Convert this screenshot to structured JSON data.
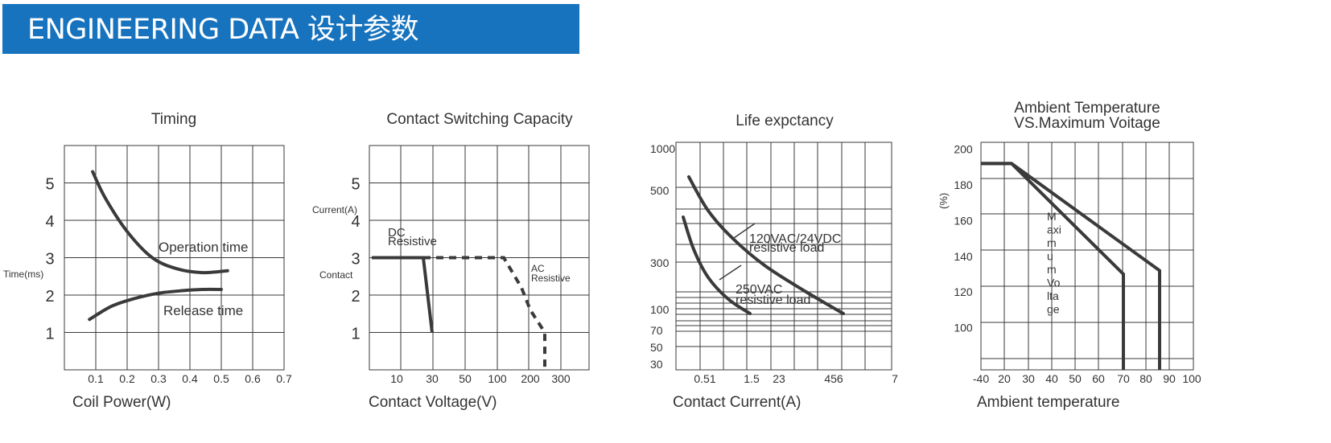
{
  "header": {
    "title": "ENGINEERING DATA 设计参数"
  },
  "accent_color": "#1773be",
  "line_color": "#3a3a3a",
  "chart_data": [
    {
      "id": "timing",
      "type": "line",
      "title": "Timing",
      "xlabel": "Coil Power(W)",
      "ylabel": "Time(ms)",
      "xlim": [
        0,
        0.7
      ],
      "ylim": [
        0,
        6
      ],
      "xticks": [
        "0.1",
        "0.2",
        "0.3",
        "0.4",
        "0.5",
        "0.6",
        "0.7"
      ],
      "yticks": [
        "1",
        "2",
        "3",
        "4",
        "5"
      ],
      "grid": true,
      "series": [
        {
          "name": "Operation time",
          "x": [
            0.09,
            0.13,
            0.2,
            0.28,
            0.36,
            0.44,
            0.52
          ],
          "y": [
            5.3,
            4.6,
            3.7,
            3.0,
            2.7,
            2.6,
            2.65
          ]
        },
        {
          "name": "Release time",
          "x": [
            0.08,
            0.15,
            0.22,
            0.3,
            0.38,
            0.44,
            0.5
          ],
          "y": [
            1.35,
            1.7,
            1.9,
            2.05,
            2.12,
            2.15,
            2.15
          ]
        }
      ]
    },
    {
      "id": "switching",
      "type": "line",
      "title": "Contact Switching Capacity",
      "xlabel": "Contact Voltage(V)",
      "ylabel_top": "Current(A)",
      "ylabel_side": "Contact",
      "ylim": [
        0,
        6
      ],
      "xticks": [
        "10",
        "30",
        "50",
        "100",
        "200",
        "300"
      ],
      "yticks": [
        "1",
        "2",
        "3",
        "4",
        "5"
      ],
      "grid": true,
      "series": [
        {
          "name": "DC Resistive",
          "x": [
            "1",
            "25",
            "30"
          ],
          "y": [
            3,
            3,
            1
          ]
        },
        {
          "name": "AC Resistive",
          "x": [
            "25",
            "125",
            "160",
            "200",
            "240",
            "240"
          ],
          "y": [
            3,
            3,
            2.2,
            1.6,
            1,
            0
          ]
        }
      ],
      "annotations": [
        "DC",
        "Resistive",
        "AC",
        "Resistive"
      ]
    },
    {
      "id": "life",
      "type": "line",
      "title": "Life expctancy",
      "xlabel": "Contact Current(A)",
      "ylabel": "",
      "xticks": [
        "0.51",
        "1.5",
        "23",
        "456",
        "7"
      ],
      "yticks": [
        "1000",
        "500",
        "300",
        "100",
        "70",
        "50",
        "30"
      ],
      "grid": true,
      "series": [
        {
          "name": "120VAC/24VDC resistive load",
          "x": [
            0.3,
            1.5,
            3,
            5.5
          ],
          "y": [
            540,
            420,
            270,
            100
          ]
        },
        {
          "name": "250VAC resistive load",
          "x": [
            0.2,
            0.6,
            1.2,
            1.5
          ],
          "y": [
            420,
            270,
            130,
            100
          ]
        }
      ],
      "annotations": [
        "120VAC/24VDC",
        "resistive load",
        "250VAC",
        "resistive load"
      ]
    },
    {
      "id": "ambient",
      "type": "line",
      "title": [
        "Ambient Temperature",
        "VS.Maximum Voitage"
      ],
      "xlabel": "Ambient temperature",
      "ylabel": "(%)",
      "xlim": [
        -40,
        100
      ],
      "ylim": [
        70,
        200
      ],
      "xticks": [
        "-40",
        "20",
        "30",
        "40",
        "50",
        "60",
        "70",
        "80",
        "90",
        "100"
      ],
      "yticks": [
        "200",
        "180",
        "160",
        "140",
        "120",
        "100"
      ],
      "grid": true,
      "vertical_label": [
        "M",
        "axi",
        "m",
        "u",
        "m",
        "Vo",
        "lta",
        "ge"
      ],
      "series": [
        {
          "x": [
            -40,
            23,
            70,
            70
          ],
          "y": [
            192,
            192,
            130,
            70
          ]
        },
        {
          "x": [
            -40,
            23,
            86,
            86
          ],
          "y": [
            192,
            192,
            132,
            70
          ]
        }
      ]
    }
  ]
}
